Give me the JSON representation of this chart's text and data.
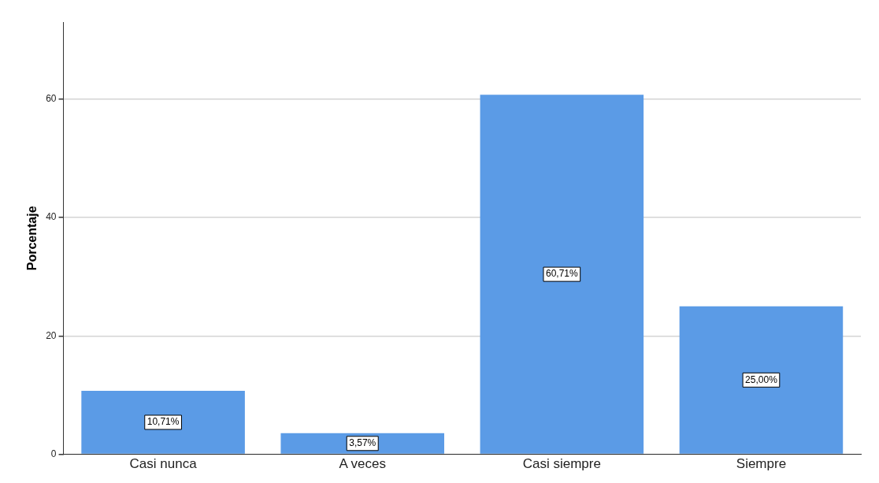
{
  "chart_data": {
    "type": "bar",
    "ylabel": "Porcentaje",
    "categories": [
      "Casi nunca",
      "A veces",
      "Casi siempre",
      "Siempre"
    ],
    "values": [
      10.71,
      3.57,
      60.71,
      25.0
    ],
    "value_labels": [
      "10,71%",
      "3,57%",
      "60,71%",
      "25,00%"
    ],
    "color": "#5b9be6",
    "ylim": [
      0,
      73
    ],
    "yticks": [
      0,
      20,
      40,
      60
    ],
    "grid": "y",
    "legend": false
  }
}
